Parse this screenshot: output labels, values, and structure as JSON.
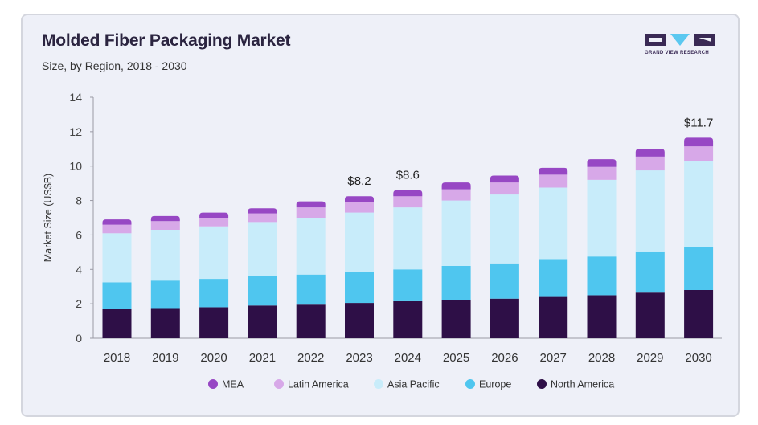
{
  "header": {
    "title": "Molded Fiber Packaging Market",
    "subtitle": "Size, by Region, 2018 - 2030"
  },
  "logo": {
    "text": "GRAND VIEW RESEARCH",
    "color": "#3a2a55",
    "accent": "#5bc8f0"
  },
  "chart_data": {
    "type": "bar",
    "stacked": true,
    "ylabel": "Market Size (US$B)",
    "ylim": [
      0,
      14
    ],
    "yticks": [
      0,
      2,
      4,
      6,
      8,
      10,
      12,
      14
    ],
    "categories": [
      "2018",
      "2019",
      "2020",
      "2021",
      "2022",
      "2023",
      "2024",
      "2025",
      "2026",
      "2027",
      "2028",
      "2029",
      "2030"
    ],
    "series": [
      {
        "name": "North America",
        "color": "#2e0f47",
        "values": [
          1.7,
          1.75,
          1.8,
          1.9,
          1.95,
          2.05,
          2.15,
          2.2,
          2.3,
          2.4,
          2.5,
          2.65,
          2.8
        ]
      },
      {
        "name": "Europe",
        "color": "#4fc6ef",
        "values": [
          1.55,
          1.6,
          1.65,
          1.7,
          1.75,
          1.8,
          1.85,
          2.0,
          2.05,
          2.15,
          2.25,
          2.35,
          2.5
        ]
      },
      {
        "name": "Asia Pacific",
        "color": "#c8ecfa",
        "values": [
          2.85,
          2.95,
          3.05,
          3.15,
          3.3,
          3.45,
          3.6,
          3.8,
          4.0,
          4.2,
          4.45,
          4.75,
          5.0
        ]
      },
      {
        "name": "Latin America",
        "color": "#d7a8e8",
        "values": [
          0.5,
          0.5,
          0.5,
          0.5,
          0.6,
          0.6,
          0.65,
          0.65,
          0.7,
          0.75,
          0.75,
          0.8,
          0.85
        ]
      },
      {
        "name": "MEA",
        "color": "#9747c4",
        "values": [
          0.3,
          0.3,
          0.3,
          0.3,
          0.35,
          0.35,
          0.35,
          0.4,
          0.4,
          0.4,
          0.45,
          0.45,
          0.5
        ]
      }
    ],
    "annotations": [
      {
        "category": "2023",
        "text": "$8.2",
        "value": 8.2
      },
      {
        "category": "2024",
        "text": "$8.6",
        "value": 8.6
      },
      {
        "category": "2030",
        "text": "$11.7",
        "value": 11.7
      }
    ],
    "legend": {
      "position": "bottom",
      "order": [
        "MEA",
        "Latin America",
        "Asia Pacific",
        "Europe",
        "North America"
      ]
    },
    "grid": false
  }
}
